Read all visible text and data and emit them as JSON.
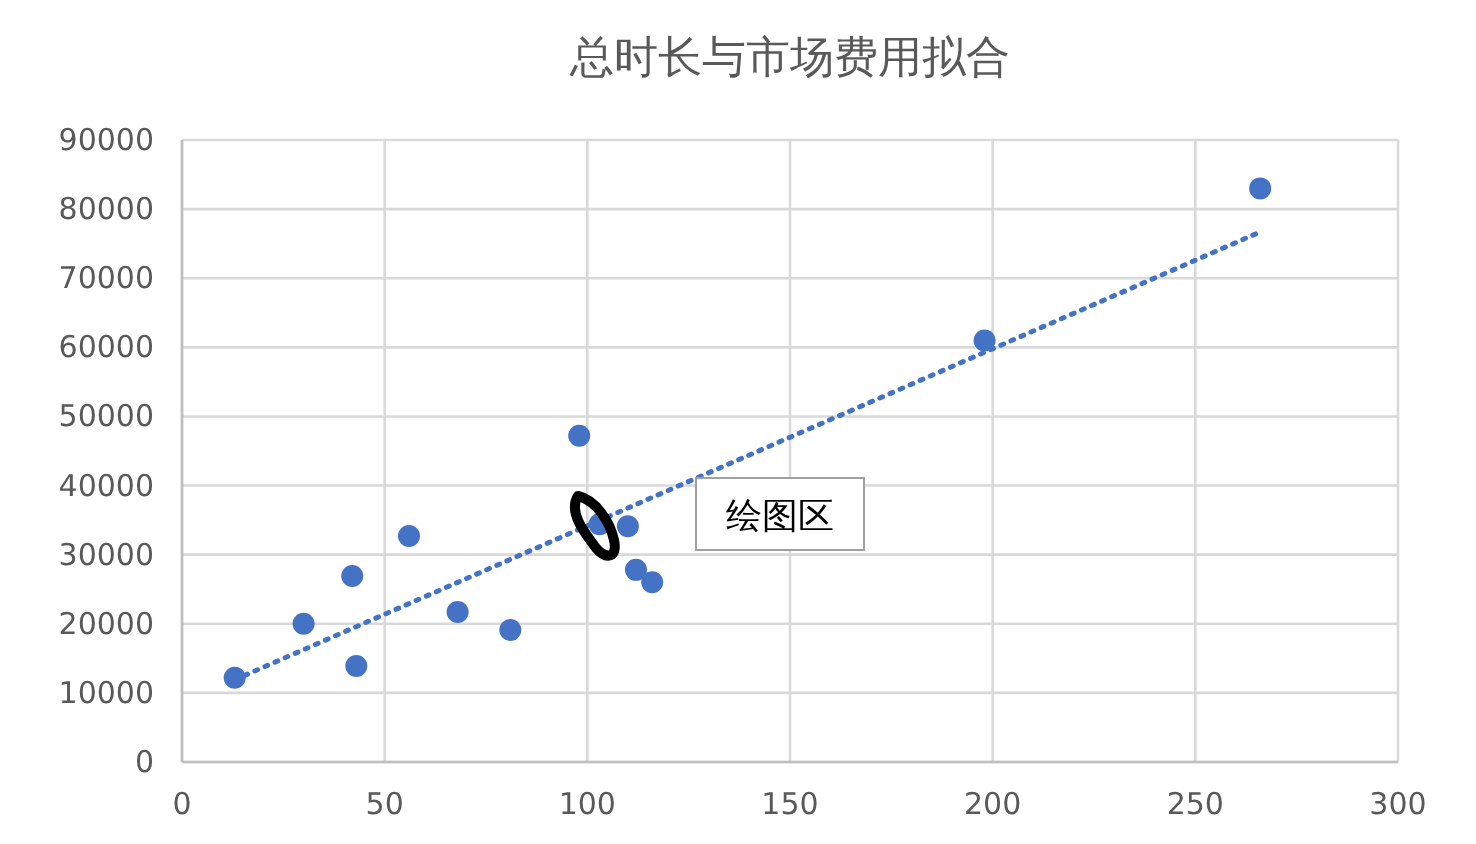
{
  "chart_data": {
    "type": "scatter",
    "title": "总时长与市场费用拟合",
    "xlim": [
      0,
      300
    ],
    "xticks": [
      0,
      50,
      100,
      150,
      200,
      250,
      300
    ],
    "ylim": [
      0,
      90000
    ],
    "yticks": [
      0,
      10000,
      20000,
      30000,
      40000,
      50000,
      60000,
      70000,
      80000,
      90000
    ],
    "grid": true,
    "series": [
      {
        "color": "#4472c4",
        "marker": "circle",
        "x": [
          13,
          30,
          42,
          43,
          56,
          68,
          81,
          98,
          103,
          110,
          112,
          116,
          198,
          266
        ],
        "values": [
          12200,
          20000,
          26900,
          13900,
          32700,
          21700,
          19100,
          47200,
          34400,
          34100,
          27800,
          26000,
          61000,
          83000
        ]
      },
      {
        "type": "line",
        "color": "#4472c4",
        "marker": "none",
        "line_style": "dotted",
        "x": [
          13,
          266
        ],
        "values": [
          11900,
          76700
        ]
      }
    ],
    "annotations": [
      "绘图区"
    ]
  }
}
